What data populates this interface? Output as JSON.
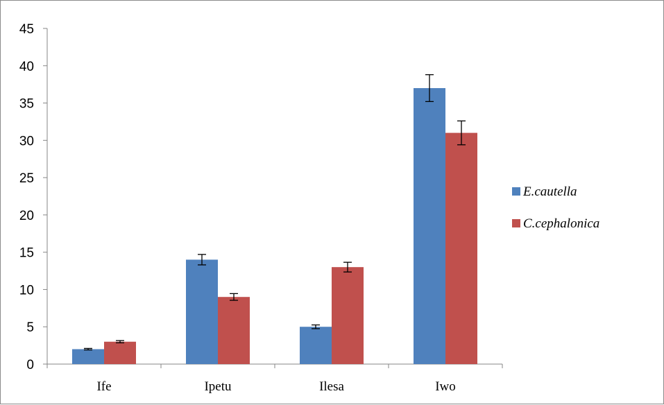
{
  "chart_data": {
    "type": "bar",
    "title": "",
    "xlabel": "",
    "ylabel": "",
    "categories": [
      "Ife",
      "Ipetu",
      "Ilesa",
      "Iwo"
    ],
    "ylim": [
      0,
      45
    ],
    "yticks": [
      0,
      5,
      10,
      15,
      20,
      25,
      30,
      35,
      40,
      45
    ],
    "grid": false,
    "legend_position": "right",
    "series": [
      {
        "name": "E.cautella",
        "color": "#4f81bd",
        "values": [
          2,
          14,
          5,
          37
        ],
        "errors": [
          0.1,
          0.7,
          0.25,
          1.8
        ]
      },
      {
        "name": "C.cephalonica",
        "color": "#c0504d",
        "values": [
          3,
          9,
          13,
          31
        ],
        "errors": [
          0.15,
          0.45,
          0.65,
          1.6
        ]
      }
    ]
  }
}
